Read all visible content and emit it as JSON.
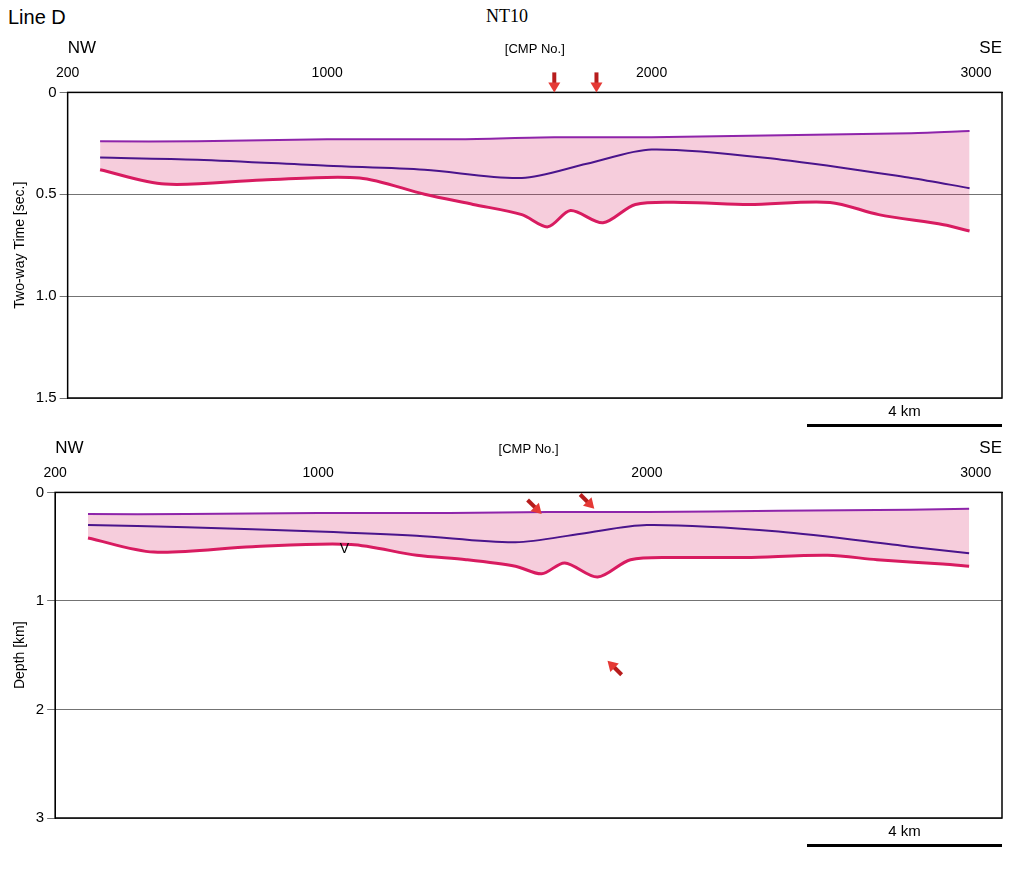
{
  "header": {
    "title": "Line D",
    "center": "NT10"
  },
  "chart_data": [
    {
      "type": "line",
      "x_label": "[CMP No.]",
      "y_label": "Two-way Time [sec.]",
      "left_label": "NW",
      "right_label": "SE",
      "scale_bar": "4 km",
      "xlim": [
        200,
        3080
      ],
      "xticks": [
        200,
        1000,
        2000,
        3000
      ],
      "ylim": [
        0,
        1.5
      ],
      "yticks": [
        0,
        0.5,
        {
          "value": 1,
          "label": "1.0"
        },
        1.5
      ],
      "grid": true,
      "legend": false,
      "series": [
        {
          "color": "#8e24aa",
          "x": [
            300,
            600,
            1000,
            1400,
            1700,
            2000,
            2400,
            2800,
            2980
          ],
          "values": [
            0.24,
            0.24,
            0.23,
            0.23,
            0.22,
            0.22,
            0.21,
            0.2,
            0.19
          ]
        },
        {
          "color": "#4a148c",
          "x": [
            300,
            600,
            1000,
            1300,
            1600,
            1800,
            2000,
            2400,
            2800,
            2980
          ],
          "values": [
            0.32,
            0.33,
            0.36,
            0.38,
            0.42,
            0.35,
            0.28,
            0.33,
            0.42,
            0.47
          ]
        },
        {
          "color": "#d81b60",
          "x": [
            300,
            500,
            800,
            1100,
            1300,
            1450,
            1600,
            1680,
            1750,
            1850,
            1950,
            2100,
            2300,
            2550,
            2700,
            2900,
            2980
          ],
          "values": [
            0.38,
            0.45,
            0.43,
            0.42,
            0.5,
            0.55,
            0.6,
            0.66,
            0.58,
            0.64,
            0.55,
            0.54,
            0.55,
            0.54,
            0.6,
            0.65,
            0.68
          ]
        }
      ],
      "annotations": [],
      "arrows": [
        {
          "x": 1700,
          "y": 0,
          "direction": "down"
        },
        {
          "x": 1830,
          "y": 0,
          "direction": "down"
        }
      ]
    },
    {
      "type": "line",
      "x_label": "[CMP No.]",
      "y_label": "Depth [km]",
      "left_label": "NW",
      "right_label": "SE",
      "scale_bar": "4 km",
      "xlim": [
        200,
        3080
      ],
      "xticks": [
        200,
        1000,
        2000,
        3000
      ],
      "ylim": [
        0,
        3
      ],
      "yticks": [
        0,
        1,
        2,
        3
      ],
      "grid": true,
      "legend": false,
      "series": [
        {
          "color": "#8e24aa",
          "x": [
            300,
            600,
            1000,
            1400,
            1700,
            2000,
            2400,
            2800,
            2980
          ],
          "values": [
            0.2,
            0.2,
            0.19,
            0.19,
            0.18,
            0.18,
            0.17,
            0.16,
            0.15
          ]
        },
        {
          "color": "#4a148c",
          "x": [
            300,
            600,
            1000,
            1300,
            1600,
            1800,
            2000,
            2400,
            2800,
            2980
          ],
          "values": [
            0.3,
            0.32,
            0.36,
            0.4,
            0.46,
            0.38,
            0.3,
            0.36,
            0.5,
            0.56
          ]
        },
        {
          "color": "#d81b60",
          "x": [
            300,
            500,
            800,
            1100,
            1300,
            1450,
            1600,
            1680,
            1750,
            1850,
            1950,
            2100,
            2300,
            2550,
            2700,
            2900,
            2980
          ],
          "values": [
            0.42,
            0.55,
            0.5,
            0.48,
            0.58,
            0.62,
            0.68,
            0.75,
            0.65,
            0.78,
            0.62,
            0.6,
            0.6,
            0.58,
            0.62,
            0.66,
            0.68
          ]
        }
      ],
      "annotations": [
        {
          "text": "V",
          "x": 1080,
          "y": 0.52
        }
      ],
      "arrows": [
        {
          "x": 1680,
          "y": 0.2,
          "direction": "down-right"
        },
        {
          "x": 1840,
          "y": 0.15,
          "direction": "down-right"
        },
        {
          "x": 1880,
          "y": 1.55,
          "direction": "up-left"
        }
      ]
    }
  ]
}
